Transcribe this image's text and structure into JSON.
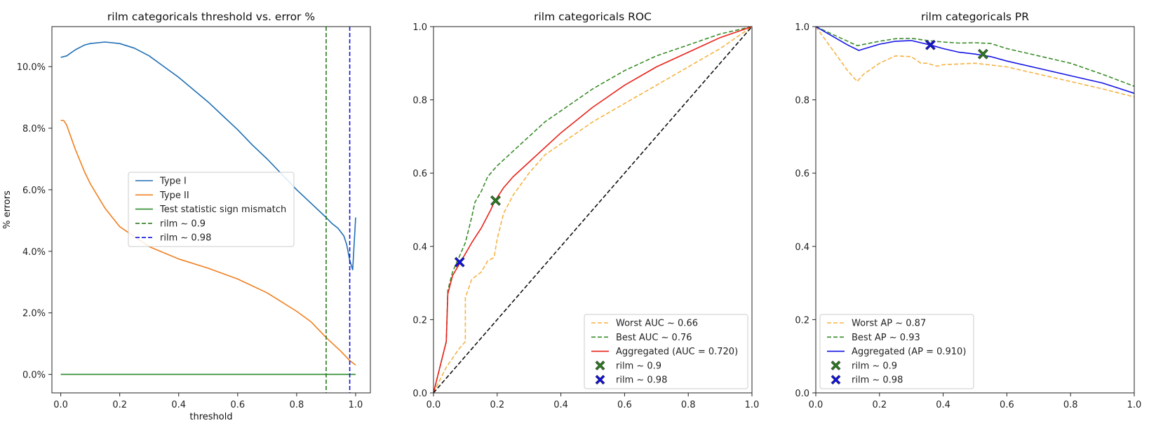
{
  "colors": {
    "type1": "#1f6fb4",
    "type2": "#f07f1f",
    "sign": "#2a8a2a",
    "rilm09": "#2a7a1e",
    "rilm098": "#1010e0",
    "worst": "#f5b342",
    "best": "#3a8c2a",
    "agg_roc": "#e8221a",
    "agg_pr": "#1414e6",
    "diag": "#111111"
  },
  "chart_data": [
    {
      "type": "line",
      "title": "rilm categoricals threshold vs. error %",
      "xlabel": "threshold",
      "ylabel": "% errors",
      "xlim": [
        -0.03,
        1.05
      ],
      "ylim": [
        -0.6,
        11.3
      ],
      "xticks": [
        0.0,
        0.2,
        0.4,
        0.6,
        0.8,
        1.0
      ],
      "xtick_labels": [
        "0.0",
        "0.2",
        "0.4",
        "0.6",
        "0.8",
        "1.0"
      ],
      "yticks": [
        0,
        2,
        4,
        6,
        8,
        10
      ],
      "ytick_labels": [
        "0.0%",
        "2.0%",
        "4.0%",
        "6.0%",
        "8.0%",
        "10.0%"
      ],
      "legend_position": "center-right",
      "series": [
        {
          "name": "Type I",
          "style": "solid",
          "color_key": "type1",
          "x": [
            0,
            0.02,
            0.05,
            0.08,
            0.1,
            0.15,
            0.2,
            0.25,
            0.3,
            0.35,
            0.4,
            0.45,
            0.5,
            0.55,
            0.6,
            0.65,
            0.7,
            0.75,
            0.8,
            0.85,
            0.9,
            0.92,
            0.94,
            0.96,
            0.97,
            0.98,
            0.99,
            1.0
          ],
          "y": [
            10.3,
            10.35,
            10.55,
            10.7,
            10.75,
            10.8,
            10.75,
            10.6,
            10.35,
            10.0,
            9.65,
            9.25,
            8.85,
            8.4,
            7.95,
            7.45,
            7.0,
            6.5,
            6.0,
            5.55,
            5.1,
            4.9,
            4.75,
            4.5,
            4.2,
            3.7,
            3.4,
            5.1
          ]
        },
        {
          "name": "Type II",
          "style": "solid",
          "color_key": "type2",
          "x": [
            0,
            0.01,
            0.02,
            0.05,
            0.08,
            0.1,
            0.15,
            0.2,
            0.3,
            0.4,
            0.5,
            0.6,
            0.7,
            0.8,
            0.85,
            0.9,
            0.95,
            0.98,
            1.0
          ],
          "y": [
            8.25,
            8.25,
            8.1,
            7.3,
            6.6,
            6.2,
            5.4,
            4.8,
            4.15,
            3.75,
            3.45,
            3.1,
            2.65,
            2.05,
            1.7,
            1.2,
            0.75,
            0.45,
            0.3
          ]
        },
        {
          "name": "Test statistic sign mismatch",
          "style": "solid",
          "color_key": "sign",
          "x": [
            0,
            1.0
          ],
          "y": [
            0.0,
            0.0
          ]
        },
        {
          "name": "rilm ~ 0.9",
          "style": "dashed-vline",
          "color_key": "rilm09",
          "x": [
            0.9
          ]
        },
        {
          "name": "rilm ~ 0.98",
          "style": "dashed-vline",
          "color_key": "rilm098",
          "x": [
            0.98
          ]
        }
      ]
    },
    {
      "type": "line",
      "title": "rilm categoricals ROC",
      "xlabel": "",
      "ylabel": "",
      "xlim": [
        0,
        1
      ],
      "ylim": [
        0,
        1
      ],
      "xticks": [
        0.0,
        0.2,
        0.4,
        0.6,
        0.8,
        1.0
      ],
      "xtick_labels": [
        "0.0",
        "0.2",
        "0.4",
        "0.6",
        "0.8",
        "1.0"
      ],
      "yticks": [
        0.0,
        0.2,
        0.4,
        0.6,
        0.8,
        1.0
      ],
      "ytick_labels": [
        "0.0",
        "0.2",
        "0.4",
        "0.6",
        "0.8",
        "1.0"
      ],
      "legend_position": "lower-right",
      "series": [
        {
          "name": "Worst AUC ~ 0.66",
          "style": "dashed",
          "color_key": "worst",
          "x": [
            0,
            0.04,
            0.08,
            0.1,
            0.1,
            0.12,
            0.15,
            0.17,
            0.19,
            0.2,
            0.22,
            0.25,
            0.3,
            0.35,
            0.4,
            0.5,
            0.6,
            0.7,
            0.8,
            0.9,
            1.0
          ],
          "y": [
            0,
            0.07,
            0.12,
            0.14,
            0.26,
            0.31,
            0.33,
            0.36,
            0.37,
            0.42,
            0.49,
            0.54,
            0.6,
            0.65,
            0.68,
            0.74,
            0.79,
            0.84,
            0.89,
            0.94,
            1.0
          ]
        },
        {
          "name": "Best AUC ~ 0.76",
          "style": "dashed",
          "color_key": "best",
          "x": [
            0,
            0.04,
            0.045,
            0.06,
            0.08,
            0.1,
            0.12,
            0.13,
            0.15,
            0.17,
            0.2,
            0.25,
            0.3,
            0.35,
            0.4,
            0.5,
            0.6,
            0.7,
            0.8,
            0.9,
            1.0
          ],
          "y": [
            0,
            0.14,
            0.28,
            0.33,
            0.37,
            0.41,
            0.48,
            0.52,
            0.55,
            0.59,
            0.62,
            0.66,
            0.7,
            0.74,
            0.77,
            0.83,
            0.88,
            0.92,
            0.95,
            0.98,
            1.0
          ]
        },
        {
          "name": "Aggregated (AUC = 0.720)",
          "style": "solid",
          "color_key": "agg_roc",
          "x": [
            0,
            0.04,
            0.045,
            0.06,
            0.08,
            0.1,
            0.12,
            0.15,
            0.18,
            0.19,
            0.22,
            0.25,
            0.3,
            0.35,
            0.4,
            0.5,
            0.6,
            0.7,
            0.8,
            0.9,
            1.0
          ],
          "y": [
            0,
            0.14,
            0.27,
            0.32,
            0.35,
            0.38,
            0.41,
            0.45,
            0.5,
            0.52,
            0.56,
            0.59,
            0.63,
            0.67,
            0.71,
            0.78,
            0.84,
            0.89,
            0.93,
            0.97,
            1.0
          ]
        },
        {
          "name": "diagonal",
          "style": "dashed",
          "color_key": "diag",
          "x": [
            0,
            1
          ],
          "y": [
            0,
            1
          ]
        },
        {
          "name": "rilm ~ 0.9",
          "style": "marker-x",
          "color_key": "rilm09",
          "x": [
            0.195
          ],
          "y": [
            0.525
          ]
        },
        {
          "name": "rilm ~ 0.98",
          "style": "marker-x",
          "color_key": "rilm098",
          "x": [
            0.082
          ],
          "y": [
            0.357
          ]
        }
      ]
    },
    {
      "type": "line",
      "title": "rilm categoricals PR",
      "xlabel": "",
      "ylabel": "",
      "xlim": [
        0,
        1
      ],
      "ylim": [
        0,
        1
      ],
      "xticks": [
        0.0,
        0.2,
        0.4,
        0.6,
        0.8,
        1.0
      ],
      "xtick_labels": [
        "0.0",
        "0.2",
        "0.4",
        "0.6",
        "0.8",
        "1.0"
      ],
      "yticks": [
        0.0,
        0.2,
        0.4,
        0.6,
        0.8,
        1.0
      ],
      "ytick_labels": [
        "0.0",
        "0.2",
        "0.4",
        "0.6",
        "0.8",
        "1.0"
      ],
      "legend_position": "lower-left",
      "series": [
        {
          "name": "Worst AP ~ 0.87",
          "style": "dashed",
          "color_key": "worst",
          "x": [
            0,
            0.05,
            0.1,
            0.13,
            0.15,
            0.2,
            0.25,
            0.3,
            0.33,
            0.35,
            0.38,
            0.4,
            0.5,
            0.6,
            0.7,
            0.8,
            0.9,
            1.0
          ],
          "y": [
            1.0,
            0.94,
            0.88,
            0.85,
            0.87,
            0.9,
            0.92,
            0.918,
            0.9,
            0.9,
            0.892,
            0.896,
            0.9,
            0.89,
            0.87,
            0.85,
            0.83,
            0.808
          ]
        },
        {
          "name": "Best AP ~ 0.93",
          "style": "dashed",
          "color_key": "best",
          "x": [
            0,
            0.05,
            0.1,
            0.13,
            0.2,
            0.25,
            0.3,
            0.35,
            0.4,
            0.45,
            0.5,
            0.55,
            0.6,
            0.7,
            0.8,
            0.9,
            1.0
          ],
          "y": [
            1.0,
            0.98,
            0.96,
            0.948,
            0.96,
            0.967,
            0.968,
            0.962,
            0.958,
            0.955,
            0.956,
            0.954,
            0.94,
            0.92,
            0.9,
            0.87,
            0.837
          ]
        },
        {
          "name": "Aggregated (AP = 0.910)",
          "style": "solid",
          "color_key": "agg_pr",
          "x": [
            0,
            0.05,
            0.1,
            0.135,
            0.2,
            0.25,
            0.3,
            0.36,
            0.4,
            0.45,
            0.5,
            0.55,
            0.6,
            0.7,
            0.8,
            0.9,
            1.0
          ],
          "y": [
            1.0,
            0.975,
            0.95,
            0.935,
            0.952,
            0.96,
            0.962,
            0.95,
            0.94,
            0.93,
            0.925,
            0.918,
            0.906,
            0.886,
            0.866,
            0.846,
            0.818
          ]
        },
        {
          "name": "rilm ~ 0.9",
          "style": "marker-x",
          "color_key": "rilm09",
          "x": [
            0.525
          ],
          "y": [
            0.925
          ]
        },
        {
          "name": "rilm ~ 0.98",
          "style": "marker-x",
          "color_key": "rilm098",
          "x": [
            0.36
          ],
          "y": [
            0.95
          ]
        }
      ]
    }
  ]
}
